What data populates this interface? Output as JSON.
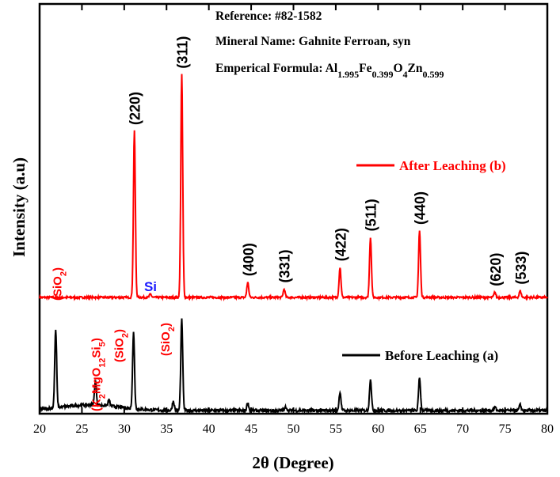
{
  "chart_data": {
    "type": "line",
    "xlabel_prefix": "2",
    "xlabel_theta": "θ",
    "xlabel_suffix": " (Degree)",
    "ylabel": "Intensity (a.u)",
    "xlim": [
      20,
      80
    ],
    "xticks": [
      "20",
      "25",
      "30",
      "35",
      "40",
      "45",
      "50",
      "55",
      "60",
      "65",
      "70",
      "75",
      "80"
    ],
    "reference": {
      "line1": "Reference: #82-1582",
      "line2": "Mineral Name: Gahnite Ferroan, syn",
      "formula_prefix": "Emperical Formula: ",
      "formula_parts": [
        {
          "t": "Al",
          "sub": "1.995"
        },
        {
          "t": "Fe",
          "sub": "0.399"
        },
        {
          "t": "O",
          "sub": "4"
        },
        {
          "t": "Zn",
          "sub": "0.599"
        }
      ]
    },
    "series": [
      {
        "name": "After Leaching (b)",
        "color": "#ff0000",
        "baseline": 0,
        "peaks": [
          {
            "x": 31.2,
            "h": 100,
            "label": "(220)"
          },
          {
            "x": 36.8,
            "h": 134,
            "label": "(311)"
          },
          {
            "x": 33.1,
            "h": 2,
            "label": "Si",
            "label_color": "#1a1aff"
          },
          {
            "x": 44.6,
            "h": 9,
            "label": "(400)"
          },
          {
            "x": 48.9,
            "h": 5,
            "label": "(331)"
          },
          {
            "x": 55.5,
            "h": 18,
            "label": "(422)"
          },
          {
            "x": 59.1,
            "h": 36,
            "label": "(511)"
          },
          {
            "x": 64.9,
            "h": 40,
            "label": "(440)"
          },
          {
            "x": 73.8,
            "h": 3,
            "label": "(620)"
          },
          {
            "x": 76.8,
            "h": 4,
            "label": "(533)"
          }
        ]
      },
      {
        "name": "Before Leaching (a)",
        "color": "#000000",
        "baseline": 0,
        "peaks": [
          {
            "x": 21.9,
            "h": 42
          },
          {
            "x": 26.6,
            "h": 13
          },
          {
            "x": 28.2,
            "h": 3
          },
          {
            "x": 31.1,
            "h": 41
          },
          {
            "x": 35.8,
            "h": 5
          },
          {
            "x": 36.8,
            "h": 49
          },
          {
            "x": 44.6,
            "h": 4
          },
          {
            "x": 49.1,
            "h": 2
          },
          {
            "x": 55.5,
            "h": 10
          },
          {
            "x": 59.1,
            "h": 17
          },
          {
            "x": 64.9,
            "h": 18
          },
          {
            "x": 73.8,
            "h": 2
          },
          {
            "x": 76.8,
            "h": 3
          }
        ],
        "annotations": [
          {
            "x": 22.0,
            "text": "(SiO",
            "sub": "2",
            "close": ")",
            "color": "#ff0000"
          },
          {
            "x": 26.6,
            "text": "(K",
            "parts": [
              {
                "t": "(K",
                "sub": "2"
              },
              {
                "t": "MgO",
                "sub": "12"
              },
              {
                "t": "Si",
                "sub": "5"
              },
              {
                "t": ")",
                "sub": ""
              }
            ],
            "color": "#ff0000"
          },
          {
            "x": 29.3,
            "text": "(SiO",
            "sub": "2",
            "close": ")",
            "color": "#ff0000"
          },
          {
            "x": 34.8,
            "text": "(SiO",
            "sub": "2",
            "close": ")",
            "color": "#ff0000"
          }
        ]
      }
    ]
  }
}
